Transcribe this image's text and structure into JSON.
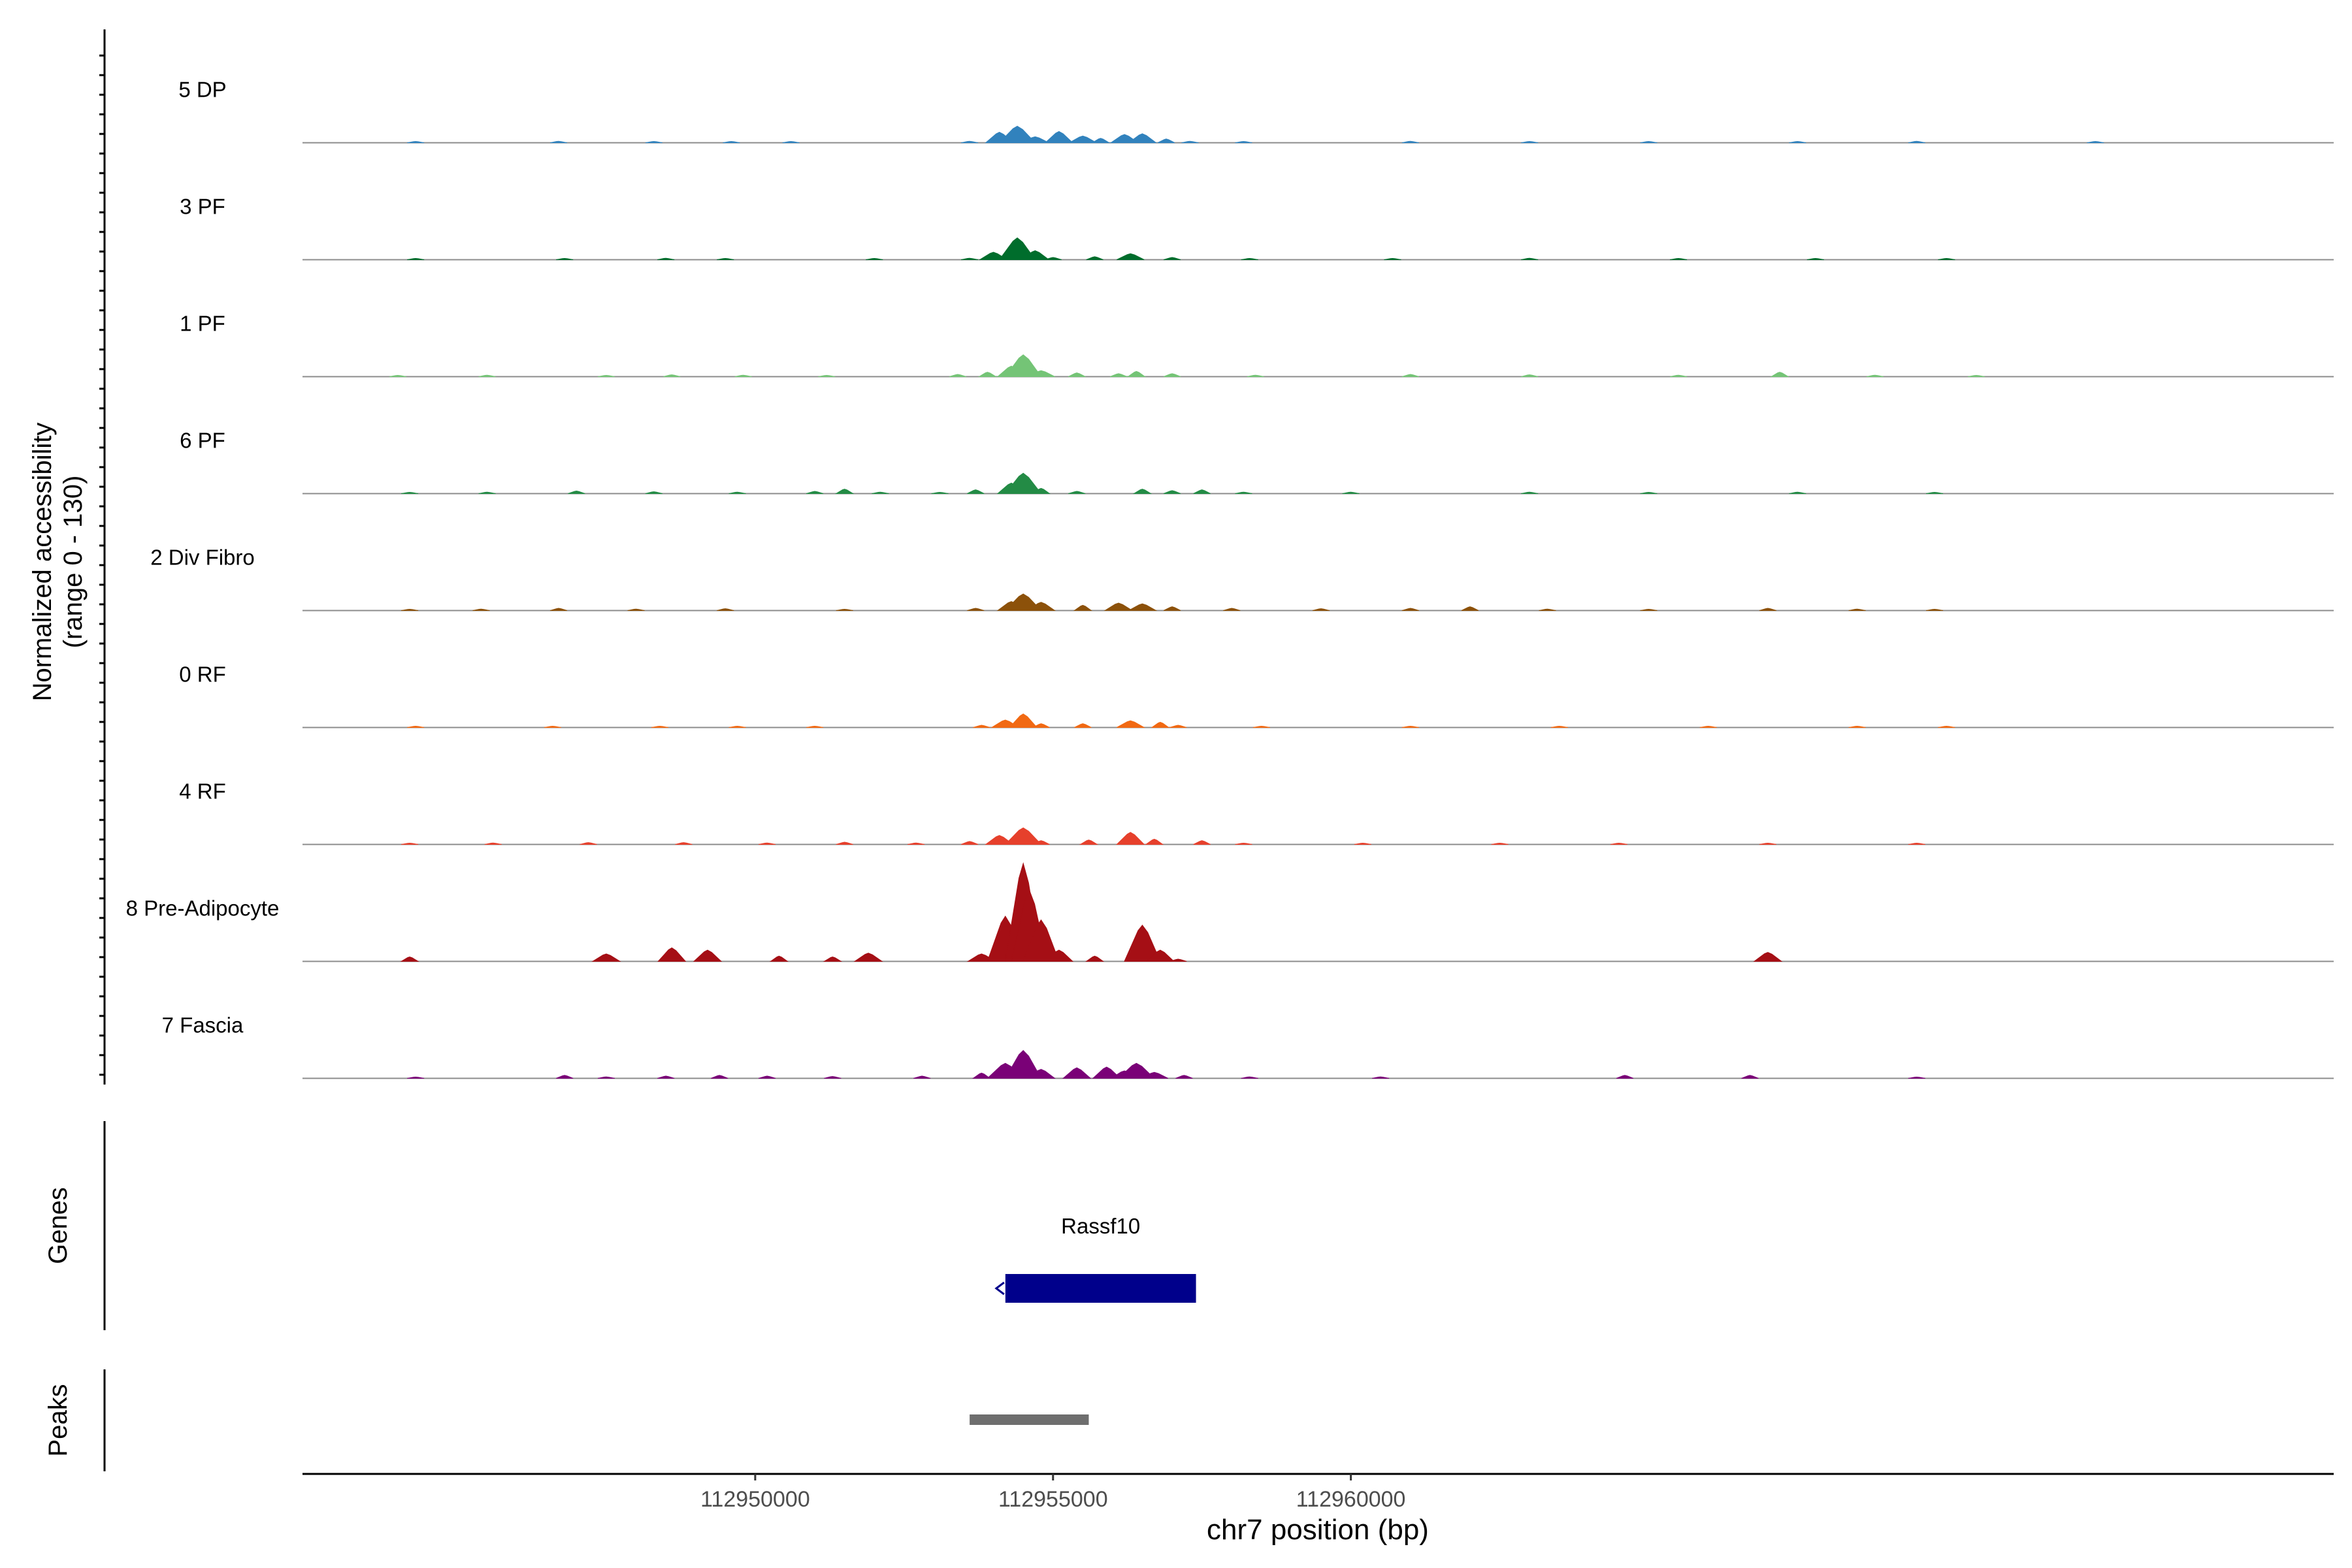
{
  "colors": {
    "axis": "#000000",
    "baseline": "#8c8c8c",
    "gene": "#00008b",
    "peak": "#6e6e6e",
    "tick_label": "#4d4d4d"
  },
  "labels": {
    "y_title_line1": "Normalized accessibility",
    "y_title_line2": "(range 0 - 130)",
    "genes_title": "Genes",
    "peaks_title": "Peaks",
    "x_title": "chr7 position (bp)"
  },
  "chart_data": {
    "type": "area",
    "xlabel": "chr7 position (bp)",
    "ylabel": "Normalized accessibility (range 0 - 130)",
    "xlim": [
      112942400,
      112976500
    ],
    "ylim": [
      0,
      130
    ],
    "x_ticks": [
      112950000,
      112955000,
      112960000
    ],
    "x_tick_labels": [
      "112950000",
      "112955000",
      "112960000"
    ],
    "series": [
      {
        "name": "5 DP",
        "color": "#3182bd",
        "points": [
          [
            112944300,
            1
          ],
          [
            112946700,
            2
          ],
          [
            112948300,
            1.5
          ],
          [
            112949600,
            1
          ],
          [
            112950600,
            1.5
          ],
          [
            112953600,
            2
          ],
          [
            112954100,
            14
          ],
          [
            112954400,
            22
          ],
          [
            112954700,
            8
          ],
          [
            112955100,
            15
          ],
          [
            112955500,
            9
          ],
          [
            112955800,
            6
          ],
          [
            112956200,
            11
          ],
          [
            112956500,
            12
          ],
          [
            112956900,
            5
          ],
          [
            112957300,
            2
          ],
          [
            112958200,
            1
          ],
          [
            112961000,
            2
          ],
          [
            112963000,
            1
          ],
          [
            112965000,
            1.5
          ],
          [
            112967500,
            1
          ],
          [
            112969500,
            2
          ],
          [
            112972500,
            1
          ]
        ]
      },
      {
        "name": "3 PF",
        "color": "#006d2c",
        "points": [
          [
            112944300,
            1
          ],
          [
            112946800,
            1.5
          ],
          [
            112948500,
            2
          ],
          [
            112949500,
            1
          ],
          [
            112952000,
            1.5
          ],
          [
            112953600,
            2
          ],
          [
            112954000,
            10
          ],
          [
            112954400,
            29
          ],
          [
            112954700,
            12
          ],
          [
            112955000,
            3
          ],
          [
            112955700,
            4
          ],
          [
            112956300,
            8
          ],
          [
            112957000,
            3
          ],
          [
            112958300,
            1.5
          ],
          [
            112960700,
            1.5
          ],
          [
            112963000,
            2
          ],
          [
            112965500,
            1
          ],
          [
            112967800,
            1.5
          ],
          [
            112970000,
            1
          ]
        ]
      },
      {
        "name": "1 PF",
        "color": "#74c476",
        "points": [
          [
            112944000,
            1
          ],
          [
            112945500,
            2
          ],
          [
            112947500,
            1
          ],
          [
            112948600,
            2.5
          ],
          [
            112949800,
            2
          ],
          [
            112951200,
            1.5
          ],
          [
            112953400,
            3
          ],
          [
            112953900,
            6
          ],
          [
            112954300,
            14
          ],
          [
            112954500,
            29
          ],
          [
            112954800,
            8
          ],
          [
            112955400,
            5
          ],
          [
            112956100,
            4
          ],
          [
            112956400,
            7
          ],
          [
            112957000,
            4
          ],
          [
            112958400,
            2
          ],
          [
            112961000,
            3
          ],
          [
            112963000,
            2.5
          ],
          [
            112965500,
            2
          ],
          [
            112967200,
            6
          ],
          [
            112968800,
            2
          ],
          [
            112970500,
            1
          ]
        ]
      },
      {
        "name": "6 PF",
        "color": "#238b45",
        "points": [
          [
            112944200,
            1
          ],
          [
            112945500,
            2
          ],
          [
            112947000,
            3.5
          ],
          [
            112948300,
            2.5
          ],
          [
            112949700,
            2
          ],
          [
            112951000,
            3
          ],
          [
            112951500,
            6
          ],
          [
            112952100,
            2
          ],
          [
            112953100,
            1.5
          ],
          [
            112953700,
            5
          ],
          [
            112954300,
            14
          ],
          [
            112954500,
            27
          ],
          [
            112954800,
            7
          ],
          [
            112955400,
            3
          ],
          [
            112956500,
            6
          ],
          [
            112957000,
            4
          ],
          [
            112957500,
            5
          ],
          [
            112958200,
            2
          ],
          [
            112960000,
            2
          ],
          [
            112963000,
            2
          ],
          [
            112965000,
            1.5
          ],
          [
            112967500,
            2
          ],
          [
            112969800,
            1
          ]
        ]
      },
      {
        "name": "2 Div Fibro",
        "color": "#8c510a",
        "points": [
          [
            112944200,
            1
          ],
          [
            112945400,
            2
          ],
          [
            112946700,
            3
          ],
          [
            112948000,
            2
          ],
          [
            112949500,
            2.5
          ],
          [
            112951500,
            1.5
          ],
          [
            112953700,
            3
          ],
          [
            112954300,
            12
          ],
          [
            112954500,
            22
          ],
          [
            112954800,
            11
          ],
          [
            112955500,
            7
          ],
          [
            112956100,
            10
          ],
          [
            112956500,
            9
          ],
          [
            112957000,
            5
          ],
          [
            112958000,
            3
          ],
          [
            112959500,
            2.5
          ],
          [
            112961000,
            3
          ],
          [
            112962000,
            5
          ],
          [
            112963300,
            2
          ],
          [
            112965000,
            1.5
          ],
          [
            112967000,
            3
          ],
          [
            112968500,
            2
          ],
          [
            112969800,
            1.5
          ]
        ]
      },
      {
        "name": "0 RF",
        "color": "#f16913",
        "points": [
          [
            112944300,
            1
          ],
          [
            112946600,
            1.5
          ],
          [
            112948400,
            1.5
          ],
          [
            112949700,
            1
          ],
          [
            112951000,
            1
          ],
          [
            112953800,
            3
          ],
          [
            112954200,
            10
          ],
          [
            112954500,
            18
          ],
          [
            112954800,
            5
          ],
          [
            112955500,
            5
          ],
          [
            112956300,
            9
          ],
          [
            112956800,
            7
          ],
          [
            112957100,
            3
          ],
          [
            112958500,
            1.5
          ],
          [
            112961000,
            1.5
          ],
          [
            112963500,
            1
          ],
          [
            112966000,
            1.5
          ],
          [
            112968500,
            1
          ],
          [
            112970000,
            1
          ]
        ]
      },
      {
        "name": "4 RF",
        "color": "#e6402c",
        "points": [
          [
            112944200,
            1.5
          ],
          [
            112945600,
            2
          ],
          [
            112947200,
            2.5
          ],
          [
            112948800,
            2.5
          ],
          [
            112950200,
            2
          ],
          [
            112951500,
            3
          ],
          [
            112952700,
            2
          ],
          [
            112953600,
            4
          ],
          [
            112954100,
            12
          ],
          [
            112954500,
            22
          ],
          [
            112954800,
            5
          ],
          [
            112955600,
            6
          ],
          [
            112956300,
            16
          ],
          [
            112956700,
            7
          ],
          [
            112957500,
            5
          ],
          [
            112958200,
            1.5
          ],
          [
            112960200,
            1.5
          ],
          [
            112962500,
            1.5
          ],
          [
            112964500,
            1
          ],
          [
            112967000,
            1.5
          ],
          [
            112969500,
            1
          ]
        ]
      },
      {
        "name": "8 Pre-Adipocyte",
        "color": "#a50f15",
        "points": [
          [
            112944200,
            6
          ],
          [
            112947500,
            10
          ],
          [
            112948600,
            18
          ],
          [
            112949200,
            15
          ],
          [
            112950400,
            7
          ],
          [
            112951300,
            6
          ],
          [
            112951900,
            11
          ],
          [
            112953800,
            10
          ],
          [
            112954200,
            60
          ],
          [
            112954500,
            130
          ],
          [
            112954600,
            95
          ],
          [
            112954800,
            55
          ],
          [
            112955100,
            15
          ],
          [
            112955700,
            7
          ],
          [
            112956500,
            48
          ],
          [
            112956800,
            15
          ],
          [
            112957100,
            3
          ],
          [
            112967000,
            12
          ]
        ]
      },
      {
        "name": "7 Fascia",
        "color": "#7a0177",
        "points": [
          [
            112944300,
            1.5
          ],
          [
            112946800,
            4
          ],
          [
            112947500,
            2
          ],
          [
            112948500,
            3
          ],
          [
            112949400,
            4
          ],
          [
            112950200,
            3
          ],
          [
            112951300,
            2.5
          ],
          [
            112952800,
            3
          ],
          [
            112953800,
            7
          ],
          [
            112954200,
            20
          ],
          [
            112954500,
            37
          ],
          [
            112954800,
            12
          ],
          [
            112955400,
            14
          ],
          [
            112955900,
            15
          ],
          [
            112956200,
            10
          ],
          [
            112956400,
            20
          ],
          [
            112956700,
            8
          ],
          [
            112957200,
            4
          ],
          [
            112958300,
            2
          ],
          [
            112960500,
            2
          ],
          [
            112964600,
            4
          ],
          [
            112966700,
            4
          ],
          [
            112969500,
            1.5
          ]
        ]
      }
    ],
    "genes": [
      {
        "name": "Rassf10",
        "start": 112954200,
        "end": 112957400,
        "strand": "-"
      }
    ],
    "peaks": [
      {
        "start": 112953600,
        "end": 112955600
      }
    ]
  }
}
